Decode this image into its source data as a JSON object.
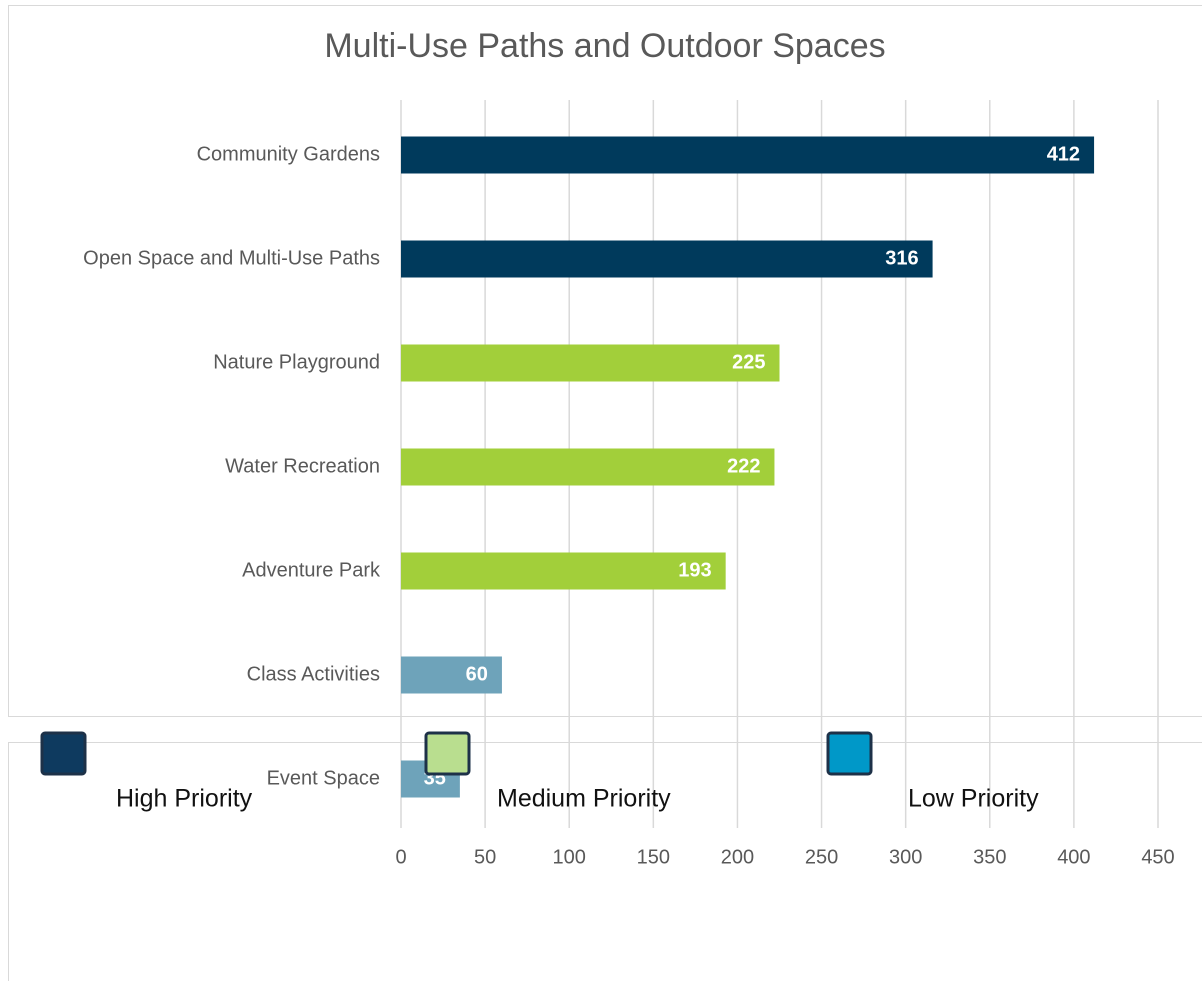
{
  "chart_data": {
    "type": "bar",
    "orientation": "horizontal",
    "title": "Multi-Use Paths and Outdoor Spaces",
    "categories": [
      "Community Gardens",
      "Open Space and Multi-Use Paths",
      "Nature Playground",
      "Water Recreation",
      "Adventure Park",
      "Class Activities",
      "Event Space"
    ],
    "values": [
      412,
      316,
      225,
      222,
      193,
      60,
      35
    ],
    "colors": [
      "#003a5c",
      "#003a5c",
      "#a2cf3a",
      "#a2cf3a",
      "#a2cf3a",
      "#6ea3ba",
      "#6ea3ba"
    ],
    "xlim": [
      0,
      450
    ],
    "xticks": [
      0,
      50,
      100,
      150,
      200,
      250,
      300,
      350,
      400,
      450
    ],
    "grid": true,
    "legend": [
      {
        "name": "High Priority",
        "color": "#0e3a5f"
      },
      {
        "name": "Medium Priority",
        "color": "#b9de8f"
      },
      {
        "name": "Low Priority",
        "color": "#0098c8"
      }
    ]
  }
}
